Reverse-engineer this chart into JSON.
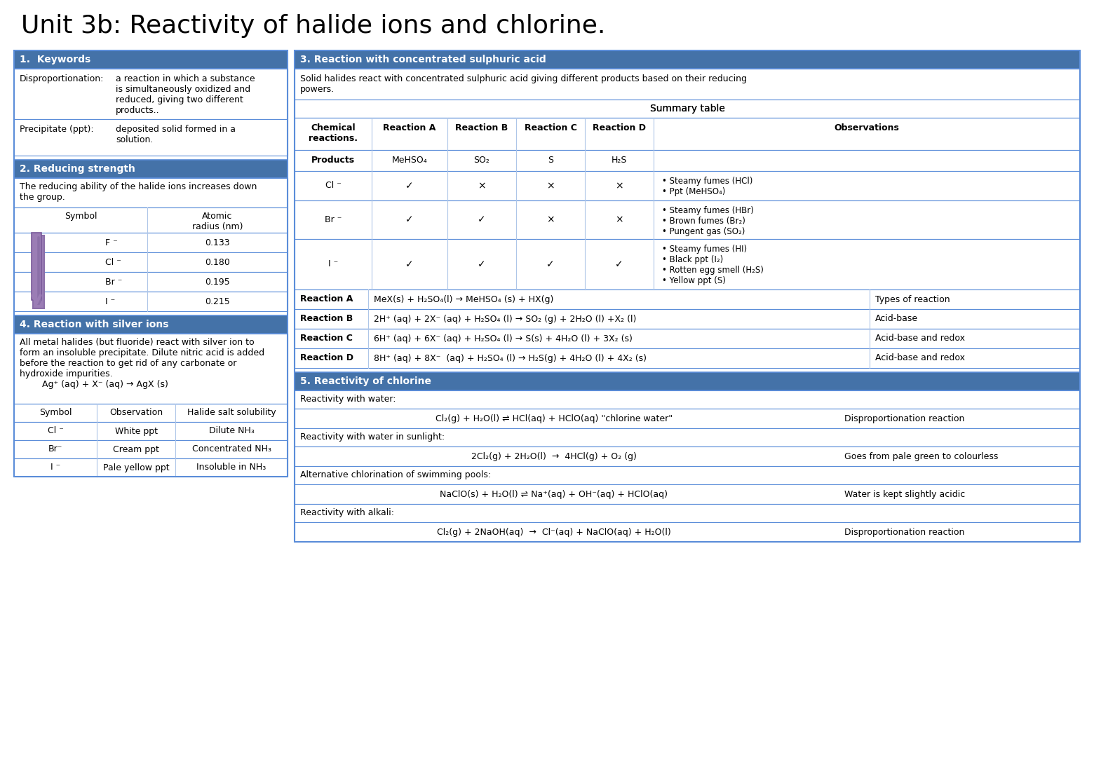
{
  "title": "Unit 3b: Reactivity of halide ions and chlorine.",
  "title_fontsize": 26,
  "title_font": "DejaVu Sans",
  "bg_color": "#ffffff",
  "header_color": "#4472a8",
  "header_text_color": "#ffffff",
  "border_color": "#5b8dd9",
  "cell_border_color": "#aec6e8",
  "text_color": "#000000",
  "section1_title": "1.  Keywords",
  "section2_title": "2. Reducing strength",
  "section4_title": "4. Reaction with silver ions",
  "section3_title": "3. Reaction with concentrated sulphuric acid",
  "section5_title": "5. Reactivity of chlorine",
  "keywords": [
    [
      "Disproportionation:",
      "a reaction in which a substance\nis simultaneously oxidized and\nreduced, giving two different\nproducts.."
    ],
    [
      "Precipitate (ppt):",
      "deposited solid formed in a\nsolution."
    ]
  ],
  "reducing_text": "The reducing ability of the halide ions increases down\nthe group.",
  "reducing_table_headers": [
    "Symbol",
    "Atomic\nradius (nm)"
  ],
  "reducing_table_rows": [
    [
      "F ⁻",
      "0.133"
    ],
    [
      "Cl ⁻",
      "0.180"
    ],
    [
      "Br ⁻",
      "0.195"
    ],
    [
      "I ⁻",
      "0.215"
    ]
  ],
  "silver_text": "All metal halides (but fluoride) react with silver ion to\nform an insoluble precipitate. Dilute nitric acid is added\nbefore the reaction to get rid of any carbonate or\nhydroxide impurities.\n        Ag⁺ (aq) + X⁻ (aq) → AgX (s)",
  "silver_table_headers": [
    "Symbol",
    "Observation",
    "Halide salt solubility"
  ],
  "silver_table_rows": [
    [
      "Cl ⁻",
      "White ppt",
      "Dilute NH₃"
    ],
    [
      "Br⁻",
      "Cream ppt",
      "Concentrated NH₃"
    ],
    [
      "I ⁻",
      "Pale yellow ppt",
      "Insoluble in NH₃"
    ]
  ],
  "acid_intro": "Solid halides react with concentrated sulphuric acid giving different products based on their reducing\npowers.",
  "acid_summary_title": "Summary table",
  "acid_table_headers": [
    "Chemical\nreactions.",
    "Reaction A",
    "Reaction B",
    "Reaction C",
    "Reaction D",
    "Observations"
  ],
  "acid_table_row0": [
    "Products",
    "MeHSO₄",
    "SO₂",
    "S",
    "H₂S",
    ""
  ],
  "acid_table_rows": [
    [
      "Cl ⁻",
      "✓",
      "×",
      "×",
      "×",
      "• Steamy fumes (HCl)\n• Ppt (MeHSO₄)"
    ],
    [
      "Br ⁻",
      "✓",
      "✓",
      "×",
      "×",
      "• Steamy fumes (HBr)\n• Brown fumes (Br₂)\n• Pungent gas (SO₂)"
    ],
    [
      "I ⁻",
      "✓",
      "✓",
      "✓",
      "✓",
      "• Steamy fumes (HI)\n• Black ppt (I₂)\n• Rotten egg smell (H₂S)\n• Yellow ppt (S)"
    ]
  ],
  "acid_reactions": [
    [
      "Reaction A",
      "MeX(s) + H₂SO₄(l) → MeHSO₄ (s) + HX(g)",
      "Types of reaction"
    ],
    [
      "Reaction B",
      "2H⁺ (aq) + 2X⁻ (aq) + H₂SO₄ (l) → SO₂ (g) + 2H₂O (l) +X₂ (l)",
      "Acid-base"
    ],
    [
      "Reaction C",
      "6H⁺ (aq) + 6X⁻ (aq) + H₂SO₄ (l) → S(s) + 4H₂O (l) + 3X₂ (s)",
      "Acid-base and redox"
    ],
    [
      "Reaction D",
      "8H⁺ (aq) + 8X⁻  (aq) + H₂SO₄ (l) → H₂S(g) + 4H₂O (l) + 4X₂ (s)",
      "Acid-base and redox"
    ]
  ],
  "chlorine_rows": [
    {
      "type": "text",
      "content": "Reactivity with water:"
    },
    {
      "type": "equation",
      "content": "Cl₂(g) + H₂O(l) ⇌ HCl(aq) + HClO(aq) \"chlorine water\"",
      "right": "Disproportionation reaction"
    },
    {
      "type": "text",
      "content": "Reactivity with water in sunlight:"
    },
    {
      "type": "equation",
      "content": "2Cl₂(g) + 2H₂O(l)  →  4HCl(g) + O₂ (g)",
      "right": "Goes from pale green to colourless"
    },
    {
      "type": "text",
      "content": "Alternative chlorination of swimming pools:"
    },
    {
      "type": "equation",
      "content": "NaClO(s) + H₂O(l) ⇌ Na⁺(aq) + OH⁻(aq) + HClO(aq)",
      "right": "Water is kept slightly acidic"
    },
    {
      "type": "text",
      "content": "Reactivity with alkali:"
    },
    {
      "type": "equation",
      "content": "Cl₂(g) + 2NaOH(aq)  →  Cl⁻(aq) + NaClO(aq) + H₂O(l)",
      "right": "Disproportionation reaction"
    }
  ]
}
